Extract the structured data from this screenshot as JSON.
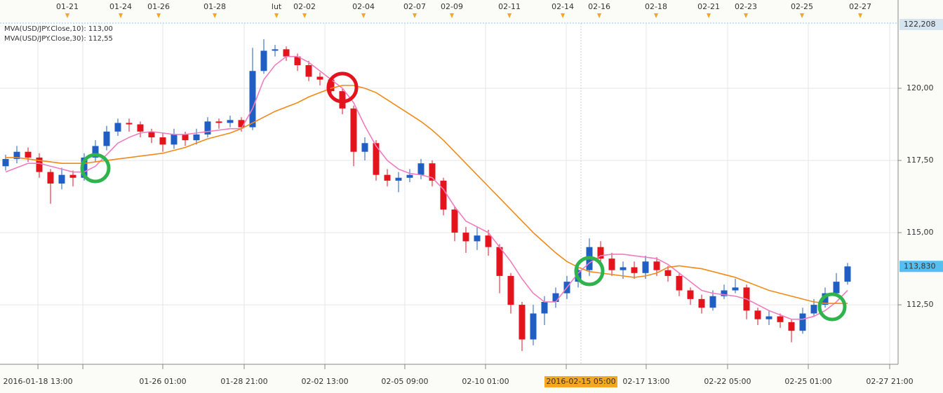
{
  "chart_data": {
    "type": "candlestick",
    "x": [
      0,
      1,
      2,
      3,
      4,
      5,
      6,
      7,
      8,
      9,
      10,
      11,
      12,
      13,
      14,
      15,
      16,
      17,
      18,
      19,
      20,
      21,
      22,
      23,
      24,
      25,
      26,
      27,
      28,
      29,
      30,
      31,
      32,
      33,
      34,
      35,
      36,
      37,
      38,
      39,
      40,
      41,
      42,
      43,
      44,
      45,
      46,
      47,
      48,
      49,
      50,
      51,
      52,
      53,
      54,
      55,
      56,
      57,
      58,
      59,
      60,
      61,
      62,
      63,
      64,
      65,
      66,
      67,
      68,
      69,
      70,
      71,
      72,
      73,
      74,
      75
    ],
    "candles": {
      "up_color": "#1f5fc4",
      "down_color": "#e3141c",
      "open": [
        117.3,
        117.55,
        117.8,
        117.6,
        117.1,
        116.7,
        117.0,
        116.9,
        117.6,
        118.0,
        118.5,
        118.8,
        118.75,
        118.5,
        118.3,
        118.05,
        118.4,
        118.2,
        118.4,
        118.85,
        118.8,
        118.9,
        118.65,
        120.6,
        121.3,
        121.35,
        121.1,
        120.8,
        120.4,
        120.3,
        119.9,
        119.3,
        117.8,
        118.1,
        117.0,
        116.8,
        116.9,
        117.0,
        117.4,
        116.8,
        115.8,
        115.0,
        114.7,
        114.9,
        114.5,
        113.5,
        112.5,
        111.3,
        112.2,
        112.6,
        112.9,
        113.3,
        113.7,
        114.5,
        114.1,
        113.7,
        113.8,
        113.6,
        114.0,
        113.7,
        113.5,
        113.0,
        112.7,
        112.4,
        112.8,
        113.0,
        113.1,
        112.3,
        112.0,
        112.1,
        111.9,
        111.6,
        112.2,
        112.5,
        112.9,
        113.3
      ],
      "high": [
        117.7,
        118.0,
        117.95,
        117.75,
        117.2,
        117.25,
        117.15,
        117.75,
        118.2,
        118.7,
        118.95,
        118.95,
        118.85,
        118.6,
        118.45,
        118.6,
        118.5,
        118.6,
        119.0,
        118.95,
        119.05,
        119.0,
        121.4,
        121.7,
        121.5,
        121.45,
        121.2,
        120.95,
        120.55,
        120.4,
        120.0,
        119.4,
        118.3,
        118.2,
        117.2,
        117.1,
        117.2,
        117.55,
        117.5,
        116.9,
        115.9,
        115.2,
        115.2,
        115.1,
        114.6,
        113.6,
        112.6,
        112.5,
        112.8,
        113.1,
        113.5,
        113.9,
        114.8,
        114.7,
        114.3,
        114.0,
        114.0,
        114.2,
        114.15,
        113.85,
        113.6,
        113.1,
        112.85,
        113.0,
        113.2,
        113.4,
        113.2,
        112.4,
        112.3,
        112.2,
        112.0,
        112.4,
        112.7,
        113.1,
        113.6,
        113.95
      ],
      "low": [
        117.15,
        117.4,
        117.45,
        116.9,
        116.0,
        116.5,
        116.6,
        116.8,
        117.45,
        117.85,
        118.35,
        118.5,
        118.3,
        118.1,
        117.8,
        117.9,
        118.0,
        118.05,
        118.3,
        118.6,
        118.65,
        118.5,
        118.55,
        120.5,
        121.1,
        120.95,
        120.6,
        120.25,
        120.1,
        119.7,
        119.1,
        117.3,
        117.5,
        116.8,
        116.6,
        116.4,
        116.75,
        116.85,
        116.6,
        115.6,
        114.7,
        114.3,
        114.4,
        114.2,
        112.9,
        112.2,
        110.9,
        111.1,
        111.8,
        112.4,
        112.7,
        113.1,
        113.5,
        113.9,
        113.5,
        113.4,
        113.4,
        113.4,
        113.5,
        113.3,
        112.8,
        112.5,
        112.2,
        112.3,
        112.7,
        112.9,
        112.0,
        111.8,
        111.8,
        111.7,
        111.2,
        111.5,
        112.1,
        112.4,
        112.8,
        113.2
      ],
      "close": [
        117.55,
        117.8,
        117.6,
        117.1,
        116.7,
        117.0,
        116.9,
        117.6,
        118.0,
        118.5,
        118.8,
        118.75,
        118.5,
        118.3,
        118.05,
        118.4,
        118.2,
        118.4,
        118.85,
        118.8,
        118.9,
        118.65,
        120.6,
        121.3,
        121.35,
        121.1,
        120.8,
        120.4,
        120.3,
        119.9,
        119.3,
        117.8,
        118.1,
        117.0,
        116.8,
        116.9,
        117.0,
        117.4,
        116.8,
        115.8,
        115.0,
        114.7,
        114.9,
        114.5,
        113.5,
        112.5,
        111.3,
        112.2,
        112.6,
        112.9,
        113.3,
        113.7,
        114.5,
        114.1,
        113.7,
        113.8,
        113.6,
        114.0,
        113.7,
        113.5,
        113.0,
        112.7,
        112.4,
        112.8,
        113.0,
        113.1,
        112.3,
        112.0,
        112.1,
        111.9,
        111.6,
        112.2,
        112.5,
        112.9,
        113.3,
        113.83
      ]
    },
    "series": [
      {
        "name": "MVA(USD/JPY.Close,10): 113,00",
        "color": "#f07cc0",
        "values": [
          117.1,
          117.25,
          117.4,
          117.4,
          117.3,
          117.2,
          117.1,
          117.1,
          117.3,
          117.7,
          118.1,
          118.3,
          118.45,
          118.5,
          118.45,
          118.4,
          118.4,
          118.45,
          118.5,
          118.55,
          118.6,
          118.6,
          119.3,
          120.3,
          120.8,
          121.1,
          121.1,
          120.9,
          120.6,
          120.3,
          120.0,
          119.5,
          118.7,
          118.0,
          117.5,
          117.2,
          117.05,
          117.0,
          116.9,
          116.5,
          115.9,
          115.4,
          115.2,
          115.0,
          114.5,
          114.0,
          113.4,
          112.9,
          112.6,
          112.6,
          113.1,
          113.6,
          113.95,
          114.2,
          114.25,
          114.25,
          114.2,
          114.15,
          114.1,
          113.9,
          113.6,
          113.3,
          113.0,
          112.9,
          112.85,
          112.8,
          112.7,
          112.5,
          112.3,
          112.15,
          112.0,
          112.0,
          112.1,
          112.3,
          112.6,
          113.0
        ]
      },
      {
        "name": "MVA(USD/JPY.Close,30): 112,55",
        "color": "#f08a18",
        "values": [
          117.6,
          117.6,
          117.55,
          117.5,
          117.45,
          117.4,
          117.4,
          117.4,
          117.45,
          117.5,
          117.55,
          117.6,
          117.65,
          117.7,
          117.75,
          117.85,
          117.95,
          118.1,
          118.25,
          118.35,
          118.45,
          118.6,
          118.8,
          119.0,
          119.2,
          119.35,
          119.5,
          119.7,
          119.85,
          120.0,
          120.1,
          120.1,
          120.0,
          119.85,
          119.6,
          119.35,
          119.1,
          118.85,
          118.55,
          118.2,
          117.8,
          117.4,
          117.0,
          116.6,
          116.2,
          115.8,
          115.4,
          115.0,
          114.65,
          114.3,
          114.0,
          113.8,
          113.65,
          113.6,
          113.55,
          113.5,
          113.45,
          113.5,
          113.6,
          113.8,
          113.85,
          113.8,
          113.75,
          113.65,
          113.55,
          113.45,
          113.3,
          113.15,
          113.0,
          112.9,
          112.8,
          112.7,
          112.6,
          112.55,
          112.55,
          112.55
        ]
      }
    ],
    "xlim": [
      -0.5,
      79.5
    ],
    "ylim": [
      110.44,
      122.208
    ],
    "yticks": [
      {
        "value": 112.5,
        "label": "112,50"
      },
      {
        "value": 115,
        "label": "115,00"
      },
      {
        "value": 117.5,
        "label": "117,50"
      },
      {
        "value": 120,
        "label": "120,00"
      }
    ],
    "price_labels": [
      {
        "value": 122.208,
        "label": "122,208",
        "background": "#d6e4ef"
      },
      {
        "value": 113.83,
        "label": "113,830",
        "background": "#56bff0"
      }
    ],
    "xticks": [
      {
        "value": 2.88,
        "label": "2016-01-18 13:00"
      },
      {
        "value": 6.88,
        "label": ""
      },
      {
        "value": 14,
        "label": "01-26 01:00"
      },
      {
        "value": 21.25,
        "label": "01-28 21:00"
      },
      {
        "value": 28.44,
        "label": "02-02 13:00"
      },
      {
        "value": 35.56,
        "label": "02-05 09:00"
      },
      {
        "value": 42.75,
        "label": "02-10 01:00"
      },
      {
        "value": 49.94,
        "label": ""
      },
      {
        "value": 57.06,
        "label": "02-17 13:00"
      },
      {
        "value": 64.31,
        "label": "02-22 05:00"
      },
      {
        "value": 71.5,
        "label": "02-25 01:00"
      },
      {
        "value": 78.75,
        "label": "02-27 21:00"
      }
    ],
    "crosshair": {
      "value": 51.25,
      "label": "2016-02-15 05:00",
      "background": "#f5a623"
    },
    "top_xticks": [
      {
        "value": 5.5,
        "label": "01-21"
      },
      {
        "value": 10.25,
        "label": "01-24"
      },
      {
        "value": 13.63,
        "label": "01-26"
      },
      {
        "value": 18.63,
        "label": "01-28"
      },
      {
        "value": 24.13,
        "label": "lut"
      },
      {
        "value": 26.63,
        "label": "02-02"
      },
      {
        "value": 31.88,
        "label": "02-04"
      },
      {
        "value": 36.44,
        "label": "02-07"
      },
      {
        "value": 39.75,
        "label": "02-09"
      },
      {
        "value": 44.88,
        "label": "02-11"
      },
      {
        "value": 49.63,
        "label": "02-14"
      },
      {
        "value": 52.88,
        "label": "02-16"
      },
      {
        "value": 57.94,
        "label": "02-18"
      },
      {
        "value": 62.63,
        "label": "02-21"
      },
      {
        "value": 65.94,
        "label": "02-23"
      },
      {
        "value": 70.94,
        "label": "02-25"
      },
      {
        "value": 76.13,
        "label": "02-27"
      }
    ],
    "grid": true
  }
}
